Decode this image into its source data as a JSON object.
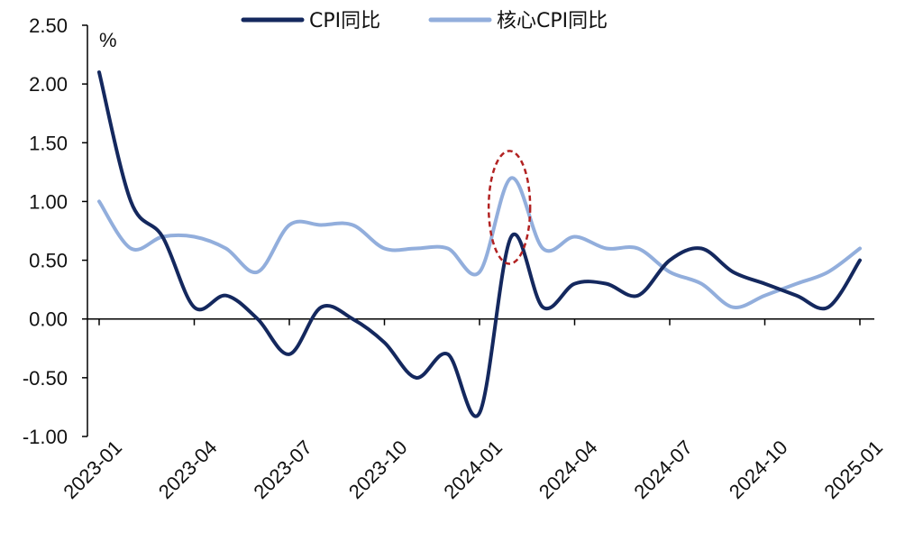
{
  "chart_data": {
    "type": "line",
    "unit": "%",
    "ylim": [
      -1.0,
      2.5
    ],
    "yticks": [
      "2.50",
      "2.00",
      "1.50",
      "1.00",
      "0.50",
      "0.00",
      "-0.50",
      "-1.00"
    ],
    "ytick_values": [
      2.5,
      2.0,
      1.5,
      1.0,
      0.5,
      0.0,
      -0.5,
      -1.0
    ],
    "xticks": [
      "2023-01",
      "2023-04",
      "2023-07",
      "2023-10",
      "2024-01",
      "2024-04",
      "2024-07",
      "2024-10",
      "2025-01"
    ],
    "x": [
      "2023-01",
      "2023-02",
      "2023-03",
      "2023-04",
      "2023-05",
      "2023-06",
      "2023-07",
      "2023-08",
      "2023-09",
      "2023-10",
      "2023-11",
      "2023-12",
      "2024-01",
      "2024-02",
      "2024-03",
      "2024-04",
      "2024-05",
      "2024-06",
      "2024-07",
      "2024-08",
      "2024-09",
      "2024-10",
      "2024-11",
      "2024-12",
      "2025-01"
    ],
    "series": [
      {
        "name": "CPI同比",
        "color": "#14285e",
        "values": [
          2.1,
          1.0,
          0.7,
          0.1,
          0.2,
          0.0,
          -0.3,
          0.1,
          0.0,
          -0.2,
          -0.5,
          -0.3,
          -0.8,
          0.7,
          0.1,
          0.3,
          0.3,
          0.2,
          0.5,
          0.6,
          0.4,
          0.3,
          0.2,
          0.1,
          0.5
        ]
      },
      {
        "name": "核心CPI同比",
        "color": "#92aedc",
        "values": [
          1.0,
          0.6,
          0.7,
          0.7,
          0.6,
          0.4,
          0.8,
          0.8,
          0.8,
          0.6,
          0.6,
          0.6,
          0.4,
          1.2,
          0.6,
          0.7,
          0.6,
          0.6,
          0.4,
          0.3,
          0.1,
          0.2,
          0.3,
          0.4,
          0.6
        ]
      }
    ],
    "highlight": {
      "x": "2024-02",
      "style": "dashed-ellipse",
      "color": "#b22222"
    },
    "legend": "top-center",
    "grid": false
  }
}
